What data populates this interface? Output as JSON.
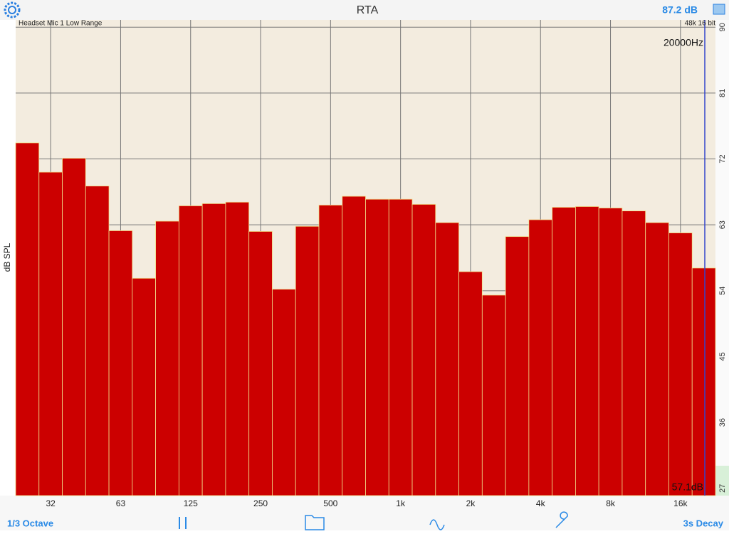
{
  "ui": {
    "title": "RTA",
    "level": "87.2 dB",
    "input": "Headset Mic 1 Low Range",
    "format": "48k 16 bit",
    "mode": "1/3 Octave",
    "decay": "3s Decay"
  },
  "chart_data": {
    "type": "bar",
    "ylabel": "dB SPL",
    "color": "#cc0000",
    "grid": true,
    "cursor_label": "20000Hz",
    "cursor_value": "57.1dB",
    "categories": [
      null,
      "32",
      null,
      null,
      "63",
      null,
      null,
      "125",
      null,
      null,
      "250",
      null,
      null,
      "500",
      null,
      null,
      "1k",
      null,
      null,
      "2k",
      null,
      null,
      "4k",
      null,
      null,
      "8k",
      null,
      null,
      "16k",
      null
    ],
    "values": [
      74.2,
      70.2,
      72.1,
      68.3,
      62.2,
      55.7,
      63.5,
      65.6,
      65.9,
      66.1,
      62.1,
      54.2,
      62.8,
      65.7,
      66.9,
      66.5,
      66.5,
      65.8,
      63.3,
      56.6,
      53.4,
      61.4,
      63.7,
      65.4,
      65.5,
      65.3,
      64.9,
      63.3,
      61.9,
      57.1
    ],
    "ylim": [
      26,
      91
    ],
    "yticks": [
      27,
      36,
      45,
      54,
      63,
      72,
      81,
      90
    ]
  }
}
